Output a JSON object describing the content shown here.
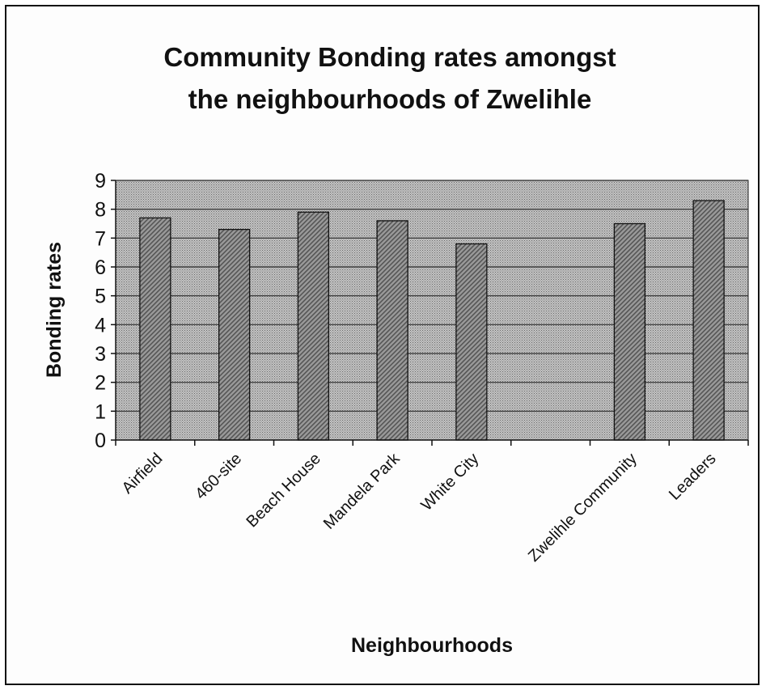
{
  "chart_data": {
    "type": "bar",
    "title_lines": [
      "Community Bonding rates amongst",
      "the neighbourhoods of Zwelihle"
    ],
    "xlabel": "Neighbourhoods",
    "ylabel": "Bonding rates",
    "ylim": [
      0,
      9
    ],
    "yticks": [
      "0",
      "1",
      "2",
      "3",
      "4",
      "5",
      "6",
      "7",
      "8",
      "9"
    ],
    "categories": [
      "Airfield",
      "460-site",
      "Beach House",
      "Mandela Park",
      "White City",
      "",
      "Zwelihle Community",
      "Leaders"
    ],
    "values": [
      7.7,
      7.3,
      7.9,
      7.6,
      6.8,
      null,
      7.5,
      8.3
    ],
    "grid": true,
    "legend": "none",
    "colors": {
      "plot_background": "#b4b4b4",
      "bar_fill": "#8e8e8e",
      "gridline": "#2a2a2a",
      "axis": "#111111"
    }
  }
}
